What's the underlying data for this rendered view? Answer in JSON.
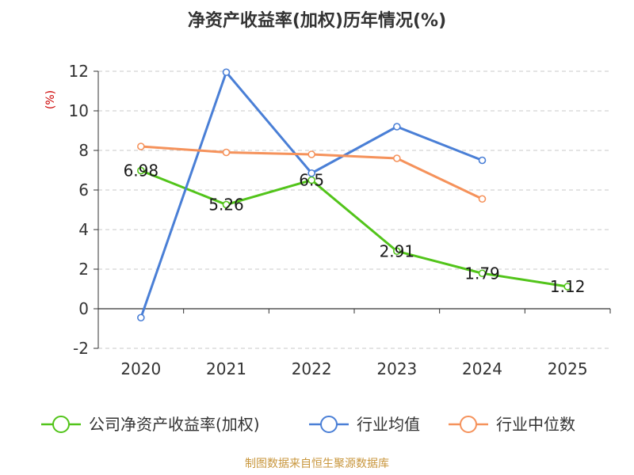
{
  "chart_data": {
    "type": "line",
    "title": "净资产收益率(加权)历年情况(%)",
    "ylabel": "(%)",
    "xlabel": "",
    "categories": [
      "2020",
      "2021",
      "2022",
      "2023",
      "2024",
      "2025"
    ],
    "ylim": [
      -2,
      12
    ],
    "yticks": [
      "12",
      "10",
      "8",
      "6",
      "4",
      "2",
      "0",
      "-2"
    ],
    "grid": true,
    "legend_position": "bottom",
    "series": [
      {
        "name": "公司净资产收益率(加权)",
        "color": "#52c41a",
        "values": [
          6.98,
          5.26,
          6.5,
          2.91,
          1.79,
          1.12
        ],
        "labels": [
          "6.98",
          "5.26",
          "6.5",
          "2.91",
          "1.79",
          "1.12"
        ]
      },
      {
        "name": "行业均值",
        "color": "#4a7fd6",
        "values": [
          -0.45,
          11.95,
          6.85,
          9.2,
          7.5,
          null
        ]
      },
      {
        "name": "行业中位数",
        "color": "#f5925b",
        "values": [
          8.2,
          7.9,
          7.8,
          7.6,
          5.55,
          null
        ]
      }
    ],
    "source": "制图数据来自恒生聚源数据库"
  }
}
